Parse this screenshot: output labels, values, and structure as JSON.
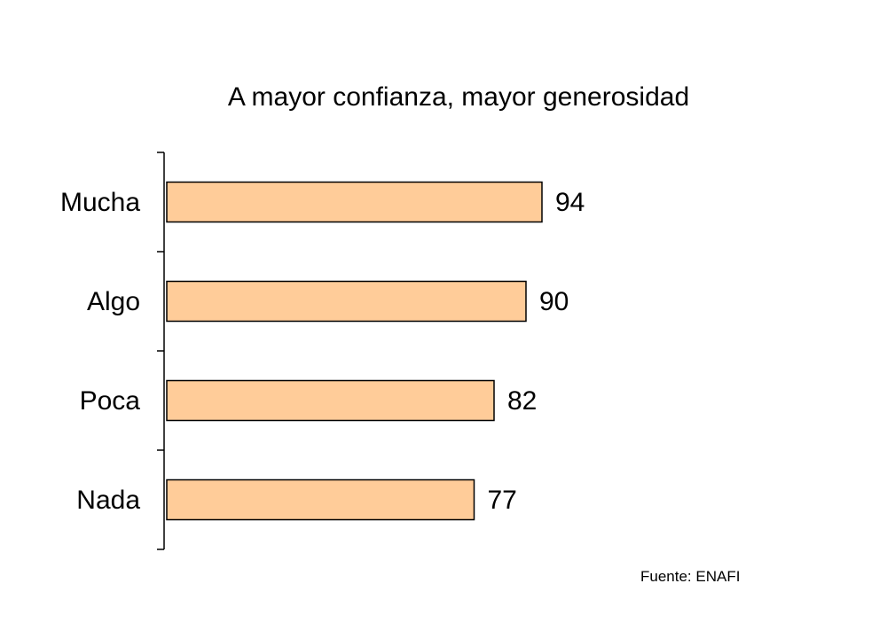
{
  "chart_data": {
    "type": "bar",
    "orientation": "horizontal",
    "title": "A mayor confianza, mayor generosidad",
    "categories": [
      "Mucha",
      "Algo",
      "Poca",
      "Nada"
    ],
    "values": [
      94,
      90,
      82,
      77
    ],
    "data_labels": [
      "94",
      "90",
      "82",
      "77"
    ],
    "xlim": [
      0,
      100
    ],
    "xlabel": "",
    "ylabel": "",
    "grid": false,
    "legend": "none",
    "bar_color": "#FFCC99",
    "bar_border_color": "#000000",
    "source": "Fuente: ENAFI"
  }
}
